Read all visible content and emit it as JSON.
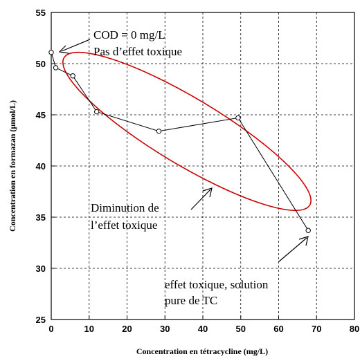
{
  "chart_data": {
    "type": "line",
    "title": "",
    "xlabel": "Concentration en tétracycline (mg/L)",
    "ylabel": "Concentration en formazan (µmol/L)",
    "xlim": [
      0,
      80
    ],
    "ylim": [
      25,
      55
    ],
    "x_ticks": [
      "0",
      "10",
      "20",
      "30",
      "40",
      "50",
      "60",
      "70",
      "80"
    ],
    "y_ticks": [
      "25",
      "30",
      "35",
      "40",
      "45",
      "50",
      "55"
    ],
    "grid": true,
    "series": [
      {
        "name": "",
        "color": "#000000",
        "points": [
          {
            "x": 0,
            "y": 51.1
          },
          {
            "x": 1.2,
            "y": 49.6
          },
          {
            "x": 5.7,
            "y": 48.8
          },
          {
            "x": 12,
            "y": 45.3
          },
          {
            "x": 28.4,
            "y": 43.4
          },
          {
            "x": 49.3,
            "y": 44.7
          },
          {
            "x": 67.8,
            "y": 33.7
          }
        ]
      }
    ],
    "annotations": {
      "cod_line1": "COD = 0 mg/L",
      "cod_line2": "Pas d’effet toxique",
      "diminution_line1": "Diminution de",
      "diminution_line2": "l’effet toxique",
      "toxic_line1": "effet toxique, solution",
      "toxic_line2": "pure de TC"
    },
    "ellipse_color": "#cc0000"
  }
}
